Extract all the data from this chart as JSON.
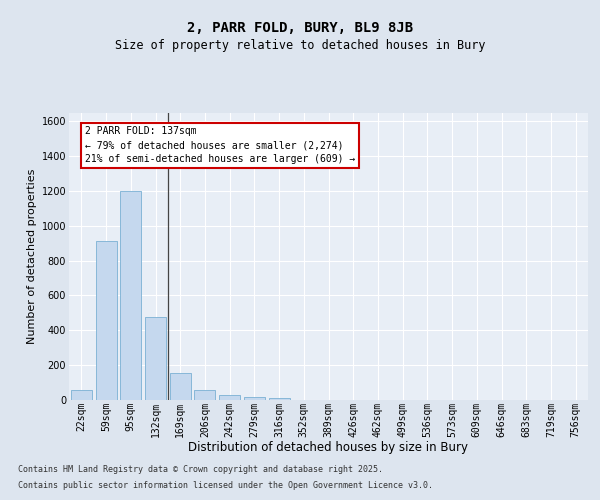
{
  "title": "2, PARR FOLD, BURY, BL9 8JB",
  "subtitle": "Size of property relative to detached houses in Bury",
  "xlabel": "Distribution of detached houses by size in Bury",
  "ylabel": "Number of detached properties",
  "categories": [
    "22sqm",
    "59sqm",
    "95sqm",
    "132sqm",
    "169sqm",
    "206sqm",
    "242sqm",
    "279sqm",
    "316sqm",
    "352sqm",
    "389sqm",
    "426sqm",
    "462sqm",
    "499sqm",
    "536sqm",
    "573sqm",
    "609sqm",
    "646sqm",
    "683sqm",
    "719sqm",
    "756sqm"
  ],
  "values": [
    55,
    910,
    1200,
    475,
    155,
    60,
    28,
    18,
    10,
    0,
    0,
    0,
    0,
    0,
    0,
    0,
    0,
    0,
    0,
    0,
    0
  ],
  "bar_fill_color": "#c5d8ee",
  "bar_edge_color": "#7ab0d4",
  "vline_color": "#444444",
  "annotation_title": "2 PARR FOLD: 137sqm",
  "annotation_line1": "← 79% of detached houses are smaller (2,274)",
  "annotation_line2": "21% of semi-detached houses are larger (609) →",
  "annotation_box_facecolor": "#ffffff",
  "annotation_box_edgecolor": "#cc0000",
  "background_color": "#dde5ef",
  "plot_bg_color": "#e8eef6",
  "footer_line1": "Contains HM Land Registry data © Crown copyright and database right 2025.",
  "footer_line2": "Contains public sector information licensed under the Open Government Licence v3.0.",
  "ylim_max": 1650,
  "yticks": [
    0,
    200,
    400,
    600,
    800,
    1000,
    1200,
    1400,
    1600
  ],
  "title_fontsize": 10,
  "subtitle_fontsize": 8.5,
  "ylabel_fontsize": 8,
  "xlabel_fontsize": 8.5,
  "tick_fontsize": 7,
  "annotation_fontsize": 7,
  "footer_fontsize": 6
}
